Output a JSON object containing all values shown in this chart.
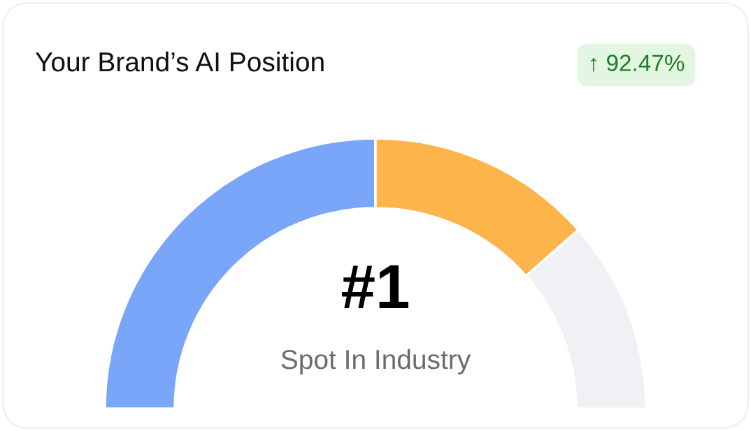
{
  "chart_data": {
    "type": "donut",
    "title": "Your Brand’s AI Position",
    "categories": [
      null,
      null,
      null
    ],
    "values": [
      50,
      27,
      23
    ],
    "colors": [
      "#7aa6f9",
      "#fdb44b",
      "#f1f0f4"
    ],
    "annotations": [
      "↑ 92.47%",
      "#1",
      "Spot In Industry"
    ]
  }
}
